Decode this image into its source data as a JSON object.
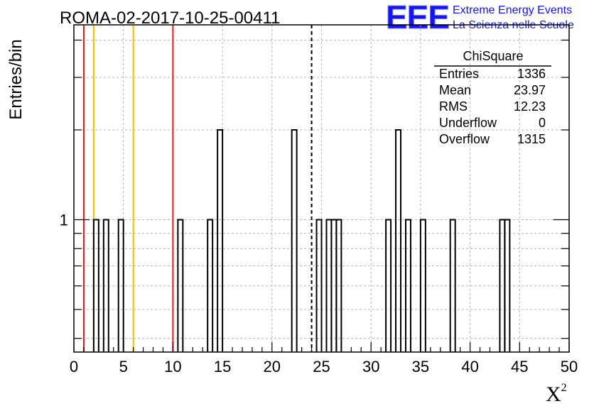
{
  "title": "ROMA-02-2017-10-25-00411",
  "logo": {
    "mark": "EEE",
    "line1": "Extreme Energy Events",
    "line2": "La Scienza nelle Scuole",
    "color": "#1515f0"
  },
  "chart_data": {
    "type": "bar",
    "histogram": true,
    "xlabel": "X",
    "xlabel_sup": "2",
    "ylabel": "Entries/bin",
    "xlim": [
      0,
      50
    ],
    "y_scale": "log",
    "ylim": [
      0.36,
      4.5
    ],
    "x_ticks": [
      0,
      5,
      10,
      15,
      20,
      25,
      30,
      35,
      40,
      45,
      50
    ],
    "x_tick_labels": [
      "0",
      "5",
      "10",
      "15",
      "20",
      "25",
      "30",
      "35",
      "40",
      "45",
      "50"
    ],
    "y_tick_labels": [
      {
        "value": 1,
        "label": "1"
      }
    ],
    "grid": true,
    "bin_width": 0.5,
    "bins": [
      {
        "x": 2.0,
        "value": 1
      },
      {
        "x": 3.0,
        "value": 1
      },
      {
        "x": 4.5,
        "value": 1
      },
      {
        "x": 10.5,
        "value": 1
      },
      {
        "x": 13.5,
        "value": 1
      },
      {
        "x": 14.5,
        "value": 2
      },
      {
        "x": 22.0,
        "value": 2
      },
      {
        "x": 24.5,
        "value": 1
      },
      {
        "x": 25.5,
        "value": 1
      },
      {
        "x": 26.0,
        "value": 1
      },
      {
        "x": 26.5,
        "value": 1
      },
      {
        "x": 31.5,
        "value": 1
      },
      {
        "x": 32.5,
        "value": 2
      },
      {
        "x": 33.5,
        "value": 1
      },
      {
        "x": 35.0,
        "value": 1
      },
      {
        "x": 38.0,
        "value": 1
      },
      {
        "x": 43.0,
        "value": 1
      },
      {
        "x": 43.5,
        "value": 1
      }
    ],
    "reference_lines": [
      {
        "x": 1.0,
        "color": "#d42020",
        "style": "solid"
      },
      {
        "x": 2.0,
        "color": "#f0c000",
        "style": "solid"
      },
      {
        "x": 6.0,
        "color": "#f0c000",
        "style": "solid"
      },
      {
        "x": 10.0,
        "color": "#d42020",
        "style": "solid"
      },
      {
        "x": 24.0,
        "color": "#000000",
        "style": "dashed"
      }
    ],
    "stats_box": {
      "title": "ChiSquare",
      "rows": [
        {
          "label": "Entries",
          "value": "1336"
        },
        {
          "label": "Mean",
          "value": "23.97"
        },
        {
          "label": "RMS",
          "value": "12.23"
        },
        {
          "label": "Underflow",
          "value": "0"
        },
        {
          "label": "Overflow",
          "value": "1315"
        }
      ]
    }
  }
}
